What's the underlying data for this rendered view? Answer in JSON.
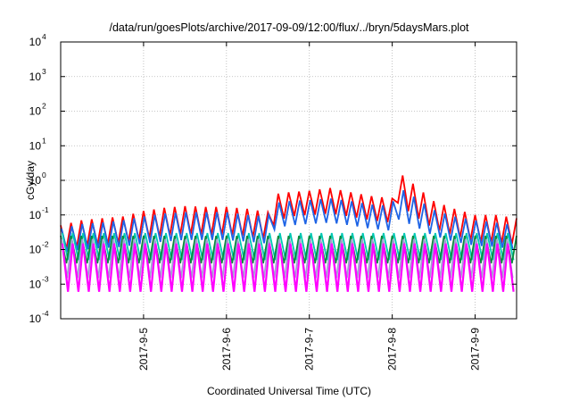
{
  "chart_data": {
    "type": "line",
    "title": "/data/run/goesPlots/archive/2017-09-09/12:00/flux/../bryn/5daysMars.plot",
    "xlabel": "Coordinated Universal Time (UTC)",
    "ylabel": "cGy/day",
    "y_scale": "log",
    "ylim": [
      0.0001,
      10000
    ],
    "y_ticks": [
      {
        "base": "10",
        "exp": "-4",
        "value": 0.0001
      },
      {
        "base": "10",
        "exp": "-3",
        "value": 0.001
      },
      {
        "base": "10",
        "exp": "-2",
        "value": 0.01
      },
      {
        "base": "10",
        "exp": "-1",
        "value": 0.1
      },
      {
        "base": "10",
        "exp": "0",
        "value": 1
      },
      {
        "base": "10",
        "exp": "1",
        "value": 10
      },
      {
        "base": "10",
        "exp": "2",
        "value": 100
      },
      {
        "base": "10",
        "exp": "3",
        "value": 1000
      },
      {
        "base": "10",
        "exp": "4",
        "value": 10000
      }
    ],
    "xlim": [
      "2017-09-04 00:00",
      "2017-09-09 12:00"
    ],
    "x_ticks": [
      "2017-9-5",
      "2017-9-6",
      "2017-9-7",
      "2017-9-8",
      "2017-9-9"
    ],
    "grid": true,
    "legend": "none",
    "series": [
      {
        "color": "#ff0000",
        "x": [
          "2017-09-04 00:00",
          "2017-09-04 06:00",
          "2017-09-04 12:00",
          "2017-09-04 18:00",
          "2017-09-05 00:00",
          "2017-09-05 06:00",
          "2017-09-05 12:00",
          "2017-09-05 18:00",
          "2017-09-06 00:00",
          "2017-09-06 06:00",
          "2017-09-06 12:00",
          "2017-09-06 14:00",
          "2017-09-06 18:00",
          "2017-09-07 00:00",
          "2017-09-07 06:00",
          "2017-09-07 12:00",
          "2017-09-07 18:00",
          "2017-09-08 00:00",
          "2017-09-08 01:00",
          "2017-09-08 06:00",
          "2017-09-08 12:00",
          "2017-09-08 18:00",
          "2017-09-09 00:00",
          "2017-09-09 06:00",
          "2017-09-09 12:00"
        ],
        "peaks": [
          0.05,
          0.07,
          0.08,
          0.09,
          0.13,
          0.16,
          0.18,
          0.17,
          0.17,
          0.15,
          0.12,
          0.4,
          0.45,
          0.5,
          0.6,
          0.45,
          0.35,
          0.3,
          2.0,
          0.8,
          0.25,
          0.15,
          0.1,
          0.1,
          0.08
        ],
        "troughs": [
          0.01,
          0.012,
          0.014,
          0.016,
          0.02,
          0.025,
          0.028,
          0.027,
          0.027,
          0.024,
          0.02,
          0.06,
          0.09,
          0.1,
          0.11,
          0.09,
          0.07,
          0.06,
          0.25,
          0.1,
          0.04,
          0.025,
          0.017,
          0.016,
          0.014
        ]
      },
      {
        "color": "#1e64e6",
        "x": [
          "2017-09-04 00:00",
          "2017-09-04 06:00",
          "2017-09-04 12:00",
          "2017-09-04 18:00",
          "2017-09-05 00:00",
          "2017-09-05 06:00",
          "2017-09-05 12:00",
          "2017-09-05 18:00",
          "2017-09-06 00:00",
          "2017-09-06 06:00",
          "2017-09-06 12:00",
          "2017-09-06 14:00",
          "2017-09-06 18:00",
          "2017-09-07 00:00",
          "2017-09-07 06:00",
          "2017-09-07 12:00",
          "2017-09-07 18:00",
          "2017-09-08 00:00",
          "2017-09-08 01:00",
          "2017-09-08 06:00",
          "2017-09-08 12:00",
          "2017-09-08 18:00",
          "2017-09-09 00:00",
          "2017-09-09 06:00",
          "2017-09-09 12:00"
        ],
        "peaks": [
          0.04,
          0.055,
          0.06,
          0.07,
          0.09,
          0.11,
          0.12,
          0.12,
          0.12,
          0.1,
          0.09,
          0.22,
          0.25,
          0.27,
          0.3,
          0.25,
          0.2,
          0.18,
          0.7,
          0.35,
          0.14,
          0.09,
          0.07,
          0.06,
          0.05
        ],
        "troughs": [
          0.008,
          0.01,
          0.011,
          0.012,
          0.015,
          0.017,
          0.019,
          0.019,
          0.019,
          0.017,
          0.015,
          0.04,
          0.05,
          0.055,
          0.06,
          0.05,
          0.04,
          0.035,
          0.08,
          0.05,
          0.025,
          0.017,
          0.013,
          0.012,
          0.01
        ]
      },
      {
        "color": "#00c8b4",
        "x": [
          "2017-09-04 00:00",
          "2017-09-09 12:00"
        ],
        "peaks": [
          0.03,
          0.03
        ],
        "troughs": [
          0.005,
          0.005
        ]
      },
      {
        "color": "#0a8c3c",
        "x": [
          "2017-09-04 00:00",
          "2017-09-09 12:00"
        ],
        "peaks": [
          0.025,
          0.025
        ],
        "troughs": [
          0.004,
          0.004
        ]
      },
      {
        "color": "#a0a0d2",
        "x": [
          "2017-09-04 00:00",
          "2017-09-09 12:00"
        ],
        "peaks": [
          0.02,
          0.02
        ],
        "troughs": [
          0.0015,
          0.0015
        ]
      },
      {
        "color": "#ff00ff",
        "x": [
          "2017-09-04 00:00",
          "2017-09-09 12:00"
        ],
        "peaks": [
          0.015,
          0.015
        ],
        "troughs": [
          0.0006,
          0.0006
        ]
      }
    ]
  }
}
